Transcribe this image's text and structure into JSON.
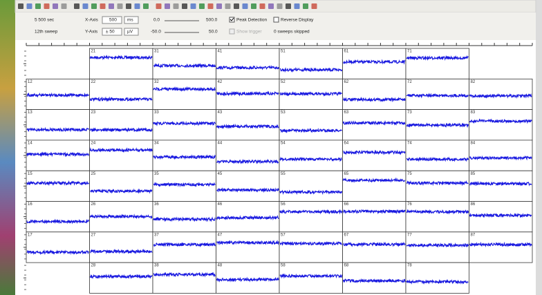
{
  "toolbar": {
    "sweep_time": "5 500 sec",
    "sweep": "12th sweep",
    "x_axis_label": "X-Axis",
    "x_axis_value": "500",
    "x_unit": "ms",
    "y_axis_label": "Y-Axis",
    "y_axis_value": "± 50",
    "y_unit": "µV",
    "x_min": "0.0",
    "x_max": "500.0",
    "y_min": "-50.0",
    "y_max": "50.0",
    "peak_detection": "Peak Detection",
    "reverse_display": "Reverse Display",
    "show_trigger": "Show trigger",
    "skipped": "0 sweeps skipped"
  },
  "channels": {
    "rows": [
      [
        null,
        "21",
        "31",
        "41",
        "51",
        "61",
        "71",
        null
      ],
      [
        "12",
        "22",
        "32",
        "42",
        "52",
        "62",
        "72",
        "82"
      ],
      [
        "13",
        "23",
        "33",
        "43",
        "53",
        "63",
        "73",
        "83"
      ],
      [
        "14",
        "24",
        "34",
        "44",
        "54",
        "64",
        "74",
        "84"
      ],
      [
        "15",
        "25",
        "35",
        "45",
        "55",
        "65",
        "75",
        "85"
      ],
      [
        "16",
        "26",
        "36",
        "46",
        "56",
        "66",
        "76",
        "86"
      ],
      [
        "17",
        "27",
        "37",
        "47",
        "57",
        "67",
        "77",
        "87"
      ],
      [
        null,
        "28",
        "38",
        "48",
        "58",
        "68",
        "78",
        null
      ]
    ]
  }
}
